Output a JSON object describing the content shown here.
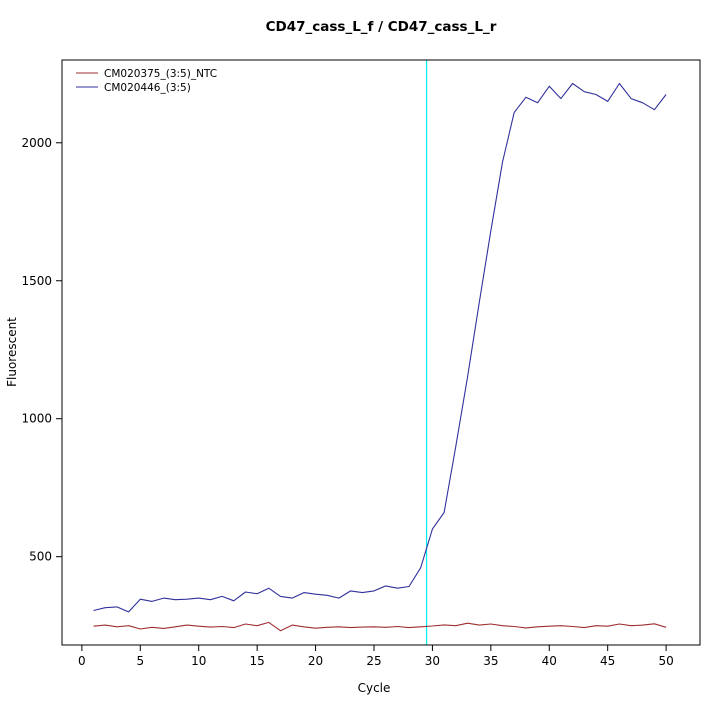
{
  "chart_data": {
    "type": "line",
    "title": "CD47_cass_L_f / CD47_cass_L_r",
    "xlabel": "Cycle",
    "ylabel": "Fluorescent",
    "xlim": [
      -1.7,
      52.9
    ],
    "ylim": [
      180,
      2300
    ],
    "x_ticks": [
      0,
      5,
      10,
      15,
      20,
      25,
      30,
      35,
      40,
      45,
      50
    ],
    "y_ticks": [
      500,
      1000,
      1500,
      2000
    ],
    "x_start": 1,
    "grid": false,
    "legend_position": "top-left",
    "threshold_line": {
      "x": 29.5,
      "color": "#00eef2"
    },
    "series": [
      {
        "name": "CM020375_(3:5)_NTC",
        "color": "#9e2f2f",
        "values": [
          248,
          252,
          246,
          250,
          238,
          244,
          240,
          246,
          252,
          248,
          245,
          247,
          243,
          256,
          250,
          262,
          232,
          252,
          246,
          241,
          244,
          246,
          243,
          245,
          246,
          244,
          247,
          243,
          246,
          249,
          253,
          250,
          259,
          252,
          256,
          250,
          247,
          242,
          246,
          248,
          250,
          247,
          243,
          250,
          248,
          256,
          250,
          252,
          257,
          244
        ]
      },
      {
        "name": "CM020446_(3:5)",
        "color": "#31319c",
        "values": [
          305,
          315,
          318,
          300,
          346,
          338,
          350,
          344,
          346,
          350,
          344,
          356,
          340,
          372,
          366,
          386,
          356,
          350,
          370,
          364,
          360,
          350,
          376,
          370,
          376,
          394,
          386,
          392,
          460,
          600,
          660,
          900,
          1150,
          1420,
          1680,
          1930,
          2110,
          2165,
          2145,
          2205,
          2160,
          2215,
          2185,
          2175,
          2150,
          2215,
          2160,
          2145,
          2120,
          2175
        ]
      }
    ]
  }
}
